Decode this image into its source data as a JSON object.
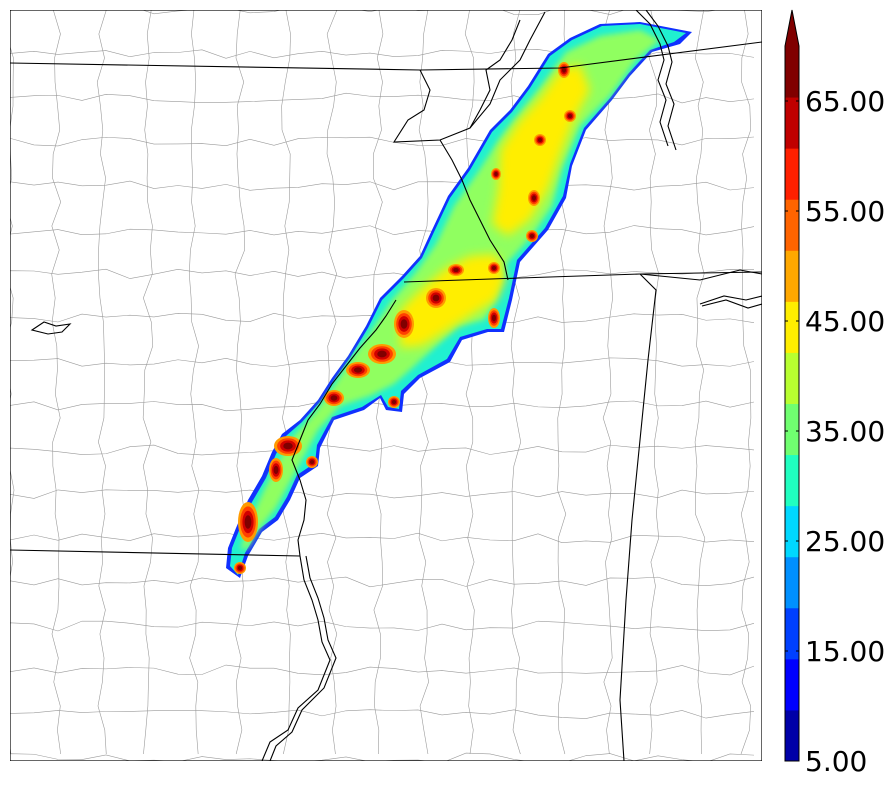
{
  "colorbar": {
    "levels": [
      5,
      10,
      15,
      20,
      25,
      30,
      35,
      40,
      45,
      50,
      55,
      60,
      65,
      70
    ],
    "colors": [
      "#0000a8",
      "#0000ff",
      "#0040ff",
      "#0090ff",
      "#00d8ff",
      "#20ffc0",
      "#70ff70",
      "#b8ff30",
      "#ffee00",
      "#ffa800",
      "#ff6400",
      "#ff2000",
      "#c00000",
      "#800000"
    ],
    "extend": "max",
    "tick_labels": [
      "5.00",
      "15.00",
      "25.00",
      "35.00",
      "45.00",
      "55.00",
      "65.00"
    ]
  },
  "map": {
    "background": "#ffffff",
    "state_border_color": "#000000",
    "county_border_color": "#888888"
  }
}
